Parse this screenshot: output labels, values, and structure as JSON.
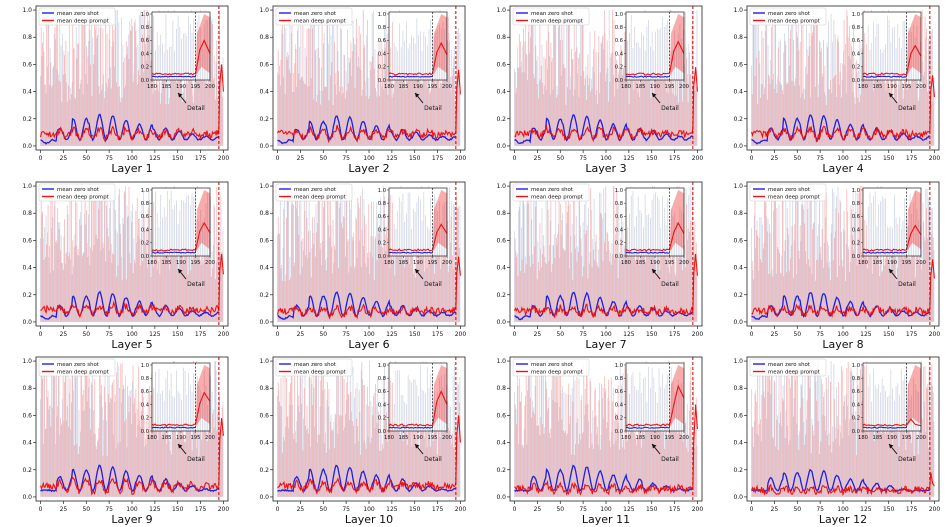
{
  "legend": {
    "zero_shot_label": "mean zero shot",
    "deep_prompt_label": "mean deep prompt"
  },
  "colors": {
    "zero_shot": "#1f1fe0",
    "deep_prompt": "#ee1111",
    "zero_shot_band": "#a9b3cf",
    "deep_prompt_band": "#f08080",
    "marker_line": "#d00000"
  },
  "inset_annotation": "Detail",
  "chart_data": [
    {
      "type": "line",
      "caption": "Layer 1",
      "xlim": [
        -5,
        205
      ],
      "ylim": [
        -0.03,
        1.03
      ],
      "xticks": [
        0,
        25,
        50,
        75,
        100,
        125,
        150,
        175,
        200
      ],
      "yticks": [
        0.0,
        0.2,
        0.4,
        0.6,
        0.8,
        1.0
      ],
      "vline_x": 195,
      "zero_shot_peaks": [
        0.02,
        0.13,
        0.2,
        0.23,
        0.22,
        0.19,
        0.16,
        0.13,
        0.11,
        0.09,
        0.07
      ],
      "deep_prompt_baseline": 0.09,
      "deep_prompt_ripple": 0.06,
      "inset": {
        "xlim": [
          180,
          200
        ],
        "ylim": [
          0,
          1.03
        ],
        "xticks": [
          180,
          185,
          190,
          195,
          200
        ],
        "yticks": [
          0.0,
          0.2,
          0.4,
          0.6,
          0.8,
          1.0
        ],
        "deep_prompt_end": [
          0.46,
          0.6,
          0.4
        ]
      }
    },
    {
      "type": "line",
      "caption": "Layer 2",
      "xlim": [
        -5,
        205
      ],
      "ylim": [
        -0.03,
        1.03
      ],
      "xticks": [
        0,
        25,
        50,
        75,
        100,
        125,
        150,
        175,
        200
      ],
      "yticks": [
        0.0,
        0.2,
        0.4,
        0.6,
        0.8,
        1.0
      ],
      "vline_x": 195,
      "zero_shot_peaks": [
        0.02,
        0.12,
        0.18,
        0.22,
        0.21,
        0.18,
        0.15,
        0.12,
        0.1,
        0.08,
        0.07
      ],
      "deep_prompt_baseline": 0.09,
      "deep_prompt_ripple": 0.07,
      "inset": {
        "xlim": [
          180,
          200
        ],
        "ylim": [
          0,
          1.03
        ],
        "xticks": [
          180,
          185,
          190,
          195,
          200
        ],
        "yticks": [
          0.0,
          0.2,
          0.4,
          0.6,
          0.8,
          1.0
        ],
        "deep_prompt_end": [
          0.42,
          0.56,
          0.38
        ]
      }
    },
    {
      "type": "line",
      "caption": "Layer 3",
      "xlim": [
        -5,
        205
      ],
      "ylim": [
        -0.03,
        1.03
      ],
      "xticks": [
        0,
        25,
        50,
        75,
        100,
        125,
        150,
        175,
        200
      ],
      "yticks": [
        0.0,
        0.2,
        0.4,
        0.6,
        0.8,
        1.0
      ],
      "vline_x": 195,
      "zero_shot_peaks": [
        0.02,
        0.13,
        0.2,
        0.23,
        0.22,
        0.19,
        0.16,
        0.13,
        0.11,
        0.09,
        0.07
      ],
      "deep_prompt_baseline": 0.09,
      "deep_prompt_ripple": 0.06,
      "inset": {
        "xlim": [
          180,
          200
        ],
        "ylim": [
          0,
          1.03
        ],
        "xticks": [
          180,
          185,
          190,
          195,
          200
        ],
        "yticks": [
          0.0,
          0.2,
          0.4,
          0.6,
          0.8,
          1.0
        ],
        "deep_prompt_end": [
          0.44,
          0.58,
          0.4
        ]
      }
    },
    {
      "type": "line",
      "caption": "Layer 4",
      "xlim": [
        -5,
        205
      ],
      "ylim": [
        -0.03,
        1.03
      ],
      "xticks": [
        0,
        25,
        50,
        75,
        100,
        125,
        150,
        175,
        200
      ],
      "yticks": [
        0.0,
        0.2,
        0.4,
        0.6,
        0.8,
        1.0
      ],
      "vline_x": 195,
      "zero_shot_peaks": [
        0.02,
        0.13,
        0.2,
        0.23,
        0.22,
        0.19,
        0.16,
        0.13,
        0.11,
        0.09,
        0.07
      ],
      "deep_prompt_baseline": 0.09,
      "deep_prompt_ripple": 0.06,
      "inset": {
        "xlim": [
          180,
          200
        ],
        "ylim": [
          0,
          1.03
        ],
        "xticks": [
          180,
          185,
          190,
          195,
          200
        ],
        "yticks": [
          0.0,
          0.2,
          0.4,
          0.6,
          0.8,
          1.0
        ],
        "deep_prompt_end": [
          0.4,
          0.52,
          0.36
        ]
      }
    },
    {
      "type": "line",
      "caption": "Layer 5",
      "xlim": [
        -5,
        205
      ],
      "ylim": [
        -0.03,
        1.03
      ],
      "xticks": [
        0,
        25,
        50,
        75,
        100,
        125,
        150,
        175,
        200
      ],
      "yticks": [
        0.0,
        0.2,
        0.4,
        0.6,
        0.8,
        1.0
      ],
      "vline_x": 195,
      "zero_shot_peaks": [
        0.02,
        0.12,
        0.19,
        0.22,
        0.21,
        0.18,
        0.15,
        0.12,
        0.1,
        0.08,
        0.07
      ],
      "deep_prompt_baseline": 0.09,
      "deep_prompt_ripple": 0.06,
      "inset": {
        "xlim": [
          180,
          200
        ],
        "ylim": [
          0,
          1.03
        ],
        "xticks": [
          180,
          185,
          190,
          195,
          200
        ],
        "yticks": [
          0.0,
          0.2,
          0.4,
          0.6,
          0.8,
          1.0
        ],
        "deep_prompt_end": [
          0.38,
          0.5,
          0.35
        ]
      }
    },
    {
      "type": "line",
      "caption": "Layer 6",
      "xlim": [
        -5,
        205
      ],
      "ylim": [
        -0.03,
        1.03
      ],
      "xticks": [
        0,
        25,
        50,
        75,
        100,
        125,
        150,
        175,
        200
      ],
      "yticks": [
        0.0,
        0.2,
        0.4,
        0.6,
        0.8,
        1.0
      ],
      "vline_x": 195,
      "zero_shot_peaks": [
        0.02,
        0.12,
        0.19,
        0.22,
        0.21,
        0.18,
        0.15,
        0.12,
        0.1,
        0.08,
        0.07
      ],
      "deep_prompt_baseline": 0.08,
      "deep_prompt_ripple": 0.05,
      "inset": {
        "xlim": [
          180,
          200
        ],
        "ylim": [
          0,
          1.03
        ],
        "xticks": [
          180,
          185,
          190,
          195,
          200
        ],
        "yticks": [
          0.0,
          0.2,
          0.4,
          0.6,
          0.8,
          1.0
        ],
        "deep_prompt_end": [
          0.36,
          0.48,
          0.34
        ]
      }
    },
    {
      "type": "line",
      "caption": "Layer 7",
      "xlim": [
        -5,
        205
      ],
      "ylim": [
        -0.03,
        1.03
      ],
      "xticks": [
        0,
        25,
        50,
        75,
        100,
        125,
        150,
        175,
        200
      ],
      "yticks": [
        0.0,
        0.2,
        0.4,
        0.6,
        0.8,
        1.0
      ],
      "vline_x": 195,
      "zero_shot_peaks": [
        0.02,
        0.12,
        0.19,
        0.22,
        0.21,
        0.18,
        0.15,
        0.12,
        0.1,
        0.08,
        0.07
      ],
      "deep_prompt_baseline": 0.08,
      "deep_prompt_ripple": 0.05,
      "inset": {
        "xlim": [
          180,
          200
        ],
        "ylim": [
          0,
          1.03
        ],
        "xticks": [
          180,
          185,
          190,
          195,
          200
        ],
        "yticks": [
          0.0,
          0.2,
          0.4,
          0.6,
          0.8,
          1.0
        ],
        "deep_prompt_end": [
          0.36,
          0.5,
          0.34
        ]
      }
    },
    {
      "type": "line",
      "caption": "Layer 8",
      "xlim": [
        -5,
        205
      ],
      "ylim": [
        -0.03,
        1.03
      ],
      "xticks": [
        0,
        25,
        50,
        75,
        100,
        125,
        150,
        175,
        200
      ],
      "yticks": [
        0.0,
        0.2,
        0.4,
        0.6,
        0.8,
        1.0
      ],
      "vline_x": 195,
      "zero_shot_peaks": [
        0.02,
        0.12,
        0.19,
        0.22,
        0.21,
        0.18,
        0.15,
        0.12,
        0.1,
        0.08,
        0.07
      ],
      "deep_prompt_baseline": 0.08,
      "deep_prompt_ripple": 0.05,
      "inset": {
        "xlim": [
          180,
          200
        ],
        "ylim": [
          0,
          1.03
        ],
        "xticks": [
          180,
          185,
          190,
          195,
          200
        ],
        "yticks": [
          0.0,
          0.2,
          0.4,
          0.6,
          0.8,
          1.0
        ],
        "deep_prompt_end": [
          0.34,
          0.46,
          0.32
        ]
      }
    },
    {
      "type": "line",
      "caption": "Layer 9",
      "xlim": [
        -5,
        205
      ],
      "ylim": [
        -0.03,
        1.03
      ],
      "xticks": [
        0,
        25,
        50,
        75,
        100,
        125,
        150,
        175,
        200
      ],
      "yticks": [
        0.0,
        0.2,
        0.4,
        0.6,
        0.8,
        1.0
      ],
      "vline_x": 195,
      "zero_shot_peaks": [
        0.05,
        0.15,
        0.2,
        0.23,
        0.22,
        0.19,
        0.16,
        0.13,
        0.1,
        0.08,
        0.06
      ],
      "deep_prompt_baseline": 0.08,
      "deep_prompt_ripple": 0.08,
      "inset": {
        "xlim": [
          180,
          200
        ],
        "ylim": [
          0,
          1.03
        ],
        "xticks": [
          180,
          185,
          190,
          195,
          200
        ],
        "yticks": [
          0.0,
          0.2,
          0.4,
          0.6,
          0.8,
          1.0
        ],
        "deep_prompt_end": [
          0.42,
          0.58,
          0.45
        ]
      }
    },
    {
      "type": "line",
      "caption": "Layer 10",
      "xlim": [
        -5,
        205
      ],
      "ylim": [
        -0.03,
        1.03
      ],
      "xticks": [
        0,
        25,
        50,
        75,
        100,
        125,
        150,
        175,
        200
      ],
      "yticks": [
        0.0,
        0.2,
        0.4,
        0.6,
        0.8,
        1.0
      ],
      "vline_x": 195,
      "zero_shot_peaks": [
        0.05,
        0.15,
        0.2,
        0.23,
        0.22,
        0.19,
        0.16,
        0.13,
        0.1,
        0.08,
        0.06
      ],
      "deep_prompt_baseline": 0.08,
      "deep_prompt_ripple": 0.06,
      "inset": {
        "xlim": [
          180,
          200
        ],
        "ylim": [
          0,
          1.03
        ],
        "xticks": [
          180,
          185,
          190,
          195,
          200
        ],
        "yticks": [
          0.0,
          0.2,
          0.4,
          0.6,
          0.8,
          1.0
        ],
        "deep_prompt_end": [
          0.45,
          0.6,
          0.4
        ]
      }
    },
    {
      "type": "line",
      "caption": "Layer 11",
      "xlim": [
        -5,
        205
      ],
      "ylim": [
        -0.03,
        1.03
      ],
      "xticks": [
        0,
        25,
        50,
        75,
        100,
        125,
        150,
        175,
        200
      ],
      "yticks": [
        0.0,
        0.2,
        0.4,
        0.6,
        0.8,
        1.0
      ],
      "vline_x": 195,
      "zero_shot_peaks": [
        0.05,
        0.15,
        0.2,
        0.23,
        0.22,
        0.19,
        0.16,
        0.13,
        0.1,
        0.08,
        0.06
      ],
      "deep_prompt_baseline": 0.06,
      "deep_prompt_ripple": 0.05,
      "inset": {
        "xlim": [
          180,
          200
        ],
        "ylim": [
          0,
          1.03
        ],
        "xticks": [
          180,
          185,
          190,
          195,
          200
        ],
        "yticks": [
          0.0,
          0.2,
          0.4,
          0.6,
          0.8,
          1.0
        ],
        "deep_prompt_end": [
          0.4,
          0.68,
          0.5
        ]
      }
    },
    {
      "type": "line",
      "caption": "Layer 12",
      "xlim": [
        -5,
        205
      ],
      "ylim": [
        -0.03,
        1.03
      ],
      "xticks": [
        0,
        25,
        50,
        75,
        100,
        125,
        150,
        175,
        200
      ],
      "yticks": [
        0.0,
        0.2,
        0.4,
        0.6,
        0.8,
        1.0
      ],
      "vline_x": 195,
      "zero_shot_peaks": [
        0.05,
        0.14,
        0.18,
        0.2,
        0.19,
        0.16,
        0.13,
        0.1,
        0.08,
        0.06,
        0.05
      ],
      "deep_prompt_baseline": 0.05,
      "deep_prompt_ripple": 0.04,
      "inset": {
        "xlim": [
          180,
          200
        ],
        "ylim": [
          0,
          1.03
        ],
        "xticks": [
          180,
          185,
          190,
          195,
          200
        ],
        "yticks": [
          0.0,
          0.2,
          0.4,
          0.6,
          0.8,
          1.0
        ],
        "deep_prompt_end": [
          0.18,
          0.1,
          0.08
        ]
      }
    }
  ]
}
